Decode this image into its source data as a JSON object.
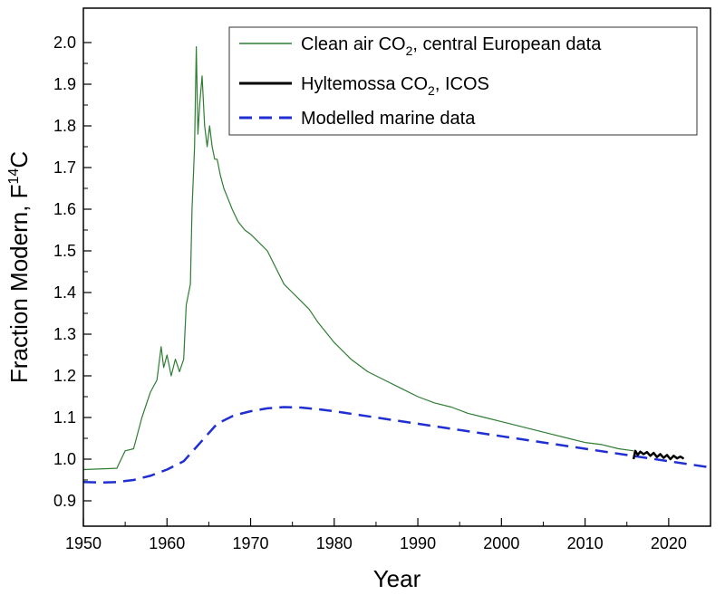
{
  "chart_data": {
    "type": "line",
    "title": "",
    "xlabel": "Year",
    "ylabel_main": "Fraction Modern, F",
    "ylabel_sup": "14",
    "ylabel_tail": "C",
    "xlim": [
      1950,
      2025
    ],
    "ylim": [
      0.9,
      2.05
    ],
    "x_ticks": [
      1950,
      1960,
      1970,
      1980,
      1990,
      2000,
      2010,
      2020
    ],
    "x_tick_labels": [
      "1950",
      "1960",
      "1970",
      "1980",
      "1990",
      "2000",
      "2010",
      "2020"
    ],
    "y_ticks": [
      0.9,
      1.0,
      1.1,
      1.2,
      1.3,
      1.4,
      1.5,
      1.6,
      1.7,
      1.8,
      1.9,
      2.0
    ],
    "y_tick_labels": [
      "0.9",
      "1.0",
      "1.1",
      "1.2",
      "1.3",
      "1.4",
      "1.5",
      "1.6",
      "1.7",
      "1.8",
      "1.9",
      "2.0"
    ],
    "grid": false,
    "legend_position": "top-right",
    "series": [
      {
        "name": "Clean air CO2, central European data",
        "legend_main": "Clean air CO",
        "legend_sub": "2",
        "legend_tail": ", central European data",
        "color": "#2e7d32",
        "style": "solid",
        "x": [
          1950,
          1954,
          1955,
          1956,
          1957,
          1958,
          1958.8,
          1959.3,
          1959.6,
          1960.0,
          1960.5,
          1961.0,
          1961.5,
          1962.0,
          1962.3,
          1962.8,
          1963.0,
          1963.3,
          1963.5,
          1963.7,
          1963.9,
          1964.2,
          1964.5,
          1964.8,
          1965.1,
          1965.4,
          1965.7,
          1966.0,
          1966.4,
          1966.8,
          1967.2,
          1967.8,
          1968.5,
          1969.3,
          1970,
          1971,
          1972,
          1973,
          1974,
          1975,
          1976,
          1977,
          1978,
          1980,
          1982,
          1984,
          1986,
          1988,
          1990,
          1992,
          1994,
          1996,
          1998,
          2000,
          2002,
          2004,
          2006,
          2008,
          2010,
          2012,
          2014,
          2015.8
        ],
        "values": [
          0.975,
          0.978,
          1.02,
          1.025,
          1.1,
          1.16,
          1.19,
          1.27,
          1.22,
          1.25,
          1.2,
          1.24,
          1.21,
          1.24,
          1.37,
          1.42,
          1.6,
          1.75,
          1.99,
          1.78,
          1.85,
          1.92,
          1.8,
          1.75,
          1.8,
          1.75,
          1.72,
          1.72,
          1.68,
          1.65,
          1.63,
          1.6,
          1.57,
          1.55,
          1.54,
          1.52,
          1.5,
          1.46,
          1.42,
          1.4,
          1.38,
          1.36,
          1.33,
          1.28,
          1.24,
          1.21,
          1.19,
          1.17,
          1.15,
          1.135,
          1.125,
          1.11,
          1.1,
          1.09,
          1.08,
          1.07,
          1.06,
          1.05,
          1.04,
          1.035,
          1.025,
          1.02
        ]
      },
      {
        "name": "Hyltemossa CO2, ICOS",
        "legend_main": "Hyltemossa CO",
        "legend_sub": "2",
        "legend_tail": ", ICOS",
        "color": "#000000",
        "style": "solid",
        "x": [
          2015.8,
          2016.0,
          2016.3,
          2016.6,
          2017.0,
          2017.4,
          2017.8,
          2018.2,
          2018.6,
          2019.0,
          2019.4,
          2019.8,
          2020.2,
          2020.6,
          2021.0,
          2021.4,
          2021.8
        ],
        "values": [
          1.0,
          1.02,
          1.01,
          1.018,
          1.012,
          1.017,
          1.008,
          1.015,
          1.005,
          1.012,
          1.003,
          1.01,
          1.0,
          1.008,
          1.002,
          1.006,
          1.001
        ]
      },
      {
        "name": "Modelled marine data",
        "legend_main": "Modelled marine data",
        "legend_sub": "",
        "legend_tail": "",
        "color": "#1f2fd1",
        "style": "dashed",
        "x": [
          1950,
          1952,
          1954,
          1956,
          1958,
          1960,
          1962,
          1964,
          1966,
          1968,
          1970,
          1972,
          1974,
          1976,
          1978,
          1980,
          1985,
          1990,
          1995,
          2000,
          2005,
          2010,
          2015,
          2020,
          2025
        ],
        "values": [
          0.945,
          0.944,
          0.945,
          0.95,
          0.96,
          0.975,
          0.995,
          1.04,
          1.085,
          1.105,
          1.115,
          1.122,
          1.125,
          1.124,
          1.12,
          1.115,
          1.1,
          1.085,
          1.07,
          1.055,
          1.04,
          1.025,
          1.01,
          0.995,
          0.98
        ]
      }
    ]
  }
}
